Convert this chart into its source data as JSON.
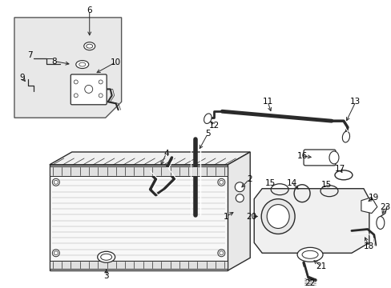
{
  "bg_color": "#ffffff",
  "fig_width": 4.89,
  "fig_height": 3.6,
  "dpi": 100,
  "gray": "#2a2a2a",
  "light_gray": "#dddddd",
  "inset_fill": "#e8e8e8",
  "label_fontsize": 7.5
}
